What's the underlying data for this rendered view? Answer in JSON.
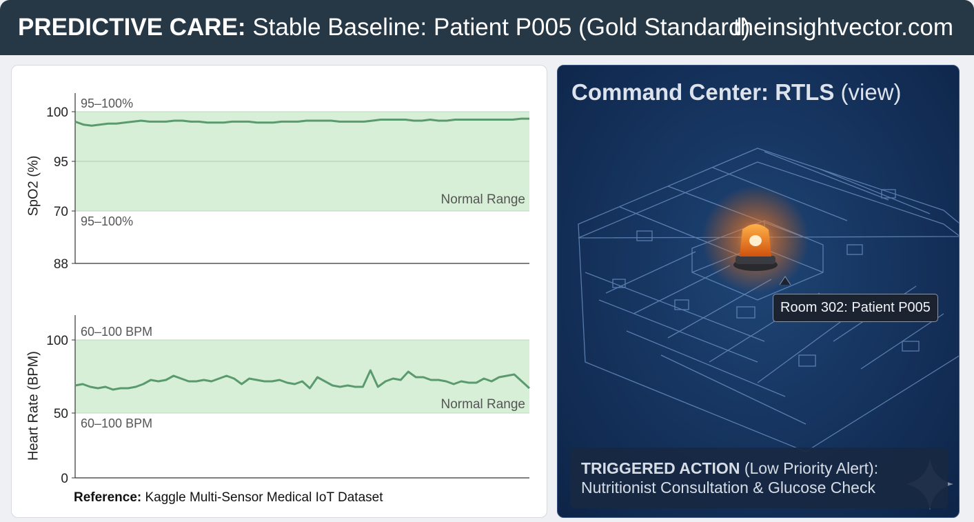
{
  "header": {
    "title_bold": "PREDICTIVE CARE:",
    "title_rest": "Stable Baseline: Patient P005 (Gold Standard)",
    "site": "theinsightvector.com"
  },
  "charts": {
    "spo2": {
      "ylabel": "SpO2 (%)",
      "ticks": [
        "100",
        "95",
        "70",
        "88"
      ],
      "band_label_top": "95–100%",
      "band_label_bottom": "95–100%",
      "range_label": "Normal Range"
    },
    "hr": {
      "ylabel": "Heart Rate (BPM)",
      "ticks": [
        "100",
        "50",
        "0"
      ],
      "band_label_top": "60–100 BPM",
      "band_label_bottom": "60–100 BPM",
      "range_label": "Normal Range"
    },
    "reference_bold": "Reference:",
    "reference_rest": "Kaggle Multi-Sensor Medical IoT Dataset"
  },
  "chart_data": [
    {
      "type": "line",
      "title": "SpO2",
      "ylabel": "SpO2 (%)",
      "xlabel": "",
      "tick_labels": [
        "100",
        "95",
        "70",
        "88"
      ],
      "normal_range": [
        95,
        100
      ],
      "series": [
        {
          "name": "SpO2",
          "values": [
            99.0,
            98.7,
            98.6,
            98.7,
            98.8,
            98.8,
            98.9,
            99.0,
            99.1,
            99.0,
            99.0,
            99.0,
            99.1,
            99.1,
            99.0,
            99.0,
            98.9,
            98.9,
            98.9,
            99.0,
            99.0,
            99.0,
            98.9,
            98.9,
            98.9,
            99.0,
            99.0,
            99.0,
            99.1,
            99.1,
            99.1,
            99.1,
            99.0,
            99.0,
            99.0,
            99.0,
            99.1,
            99.2,
            99.2,
            99.2,
            99.2,
            99.1,
            99.1,
            99.2,
            99.1,
            99.1,
            99.2,
            99.2,
            99.2,
            99.2,
            99.2,
            99.2,
            99.2,
            99.2,
            99.3,
            99.3
          ]
        }
      ]
    },
    {
      "type": "line",
      "title": "Heart Rate",
      "ylabel": "Heart Rate (BPM)",
      "xlabel": "",
      "ylim": [
        0,
        120
      ],
      "normal_range": [
        60,
        100
      ],
      "series": [
        {
          "name": "Heart Rate",
          "values": [
            67,
            68,
            66,
            65,
            66,
            64,
            65,
            65,
            66,
            68,
            71,
            70,
            71,
            74,
            72,
            70,
            70,
            71,
            70,
            72,
            74,
            72,
            68,
            72,
            71,
            70,
            70,
            71,
            69,
            68,
            70,
            65,
            73,
            70,
            67,
            66,
            67,
            66,
            66,
            78,
            66,
            70,
            72,
            71,
            77,
            73,
            73,
            71,
            71,
            70,
            68,
            70,
            69,
            69,
            72,
            70,
            73,
            74,
            75,
            70,
            65
          ]
        }
      ]
    }
  ],
  "right_panel": {
    "title_bold": "Command Center: RTLS",
    "title_rest": "(view)",
    "tooltip": "Room 302: Patient P005",
    "action_bold": "TRIGGERED ACTION",
    "action_priority": "(Low Priority Alert):",
    "action_detail": "Nutritionist Consultation & Glucose Check"
  },
  "colors": {
    "header_bg": "#263846",
    "band": "#d6efd6",
    "line": "#5b9a6e",
    "alarm": "#ff8a24"
  },
  "icons": [
    "alarm-beacon-icon",
    "sparkle-icon",
    "floor-plan-map"
  ]
}
